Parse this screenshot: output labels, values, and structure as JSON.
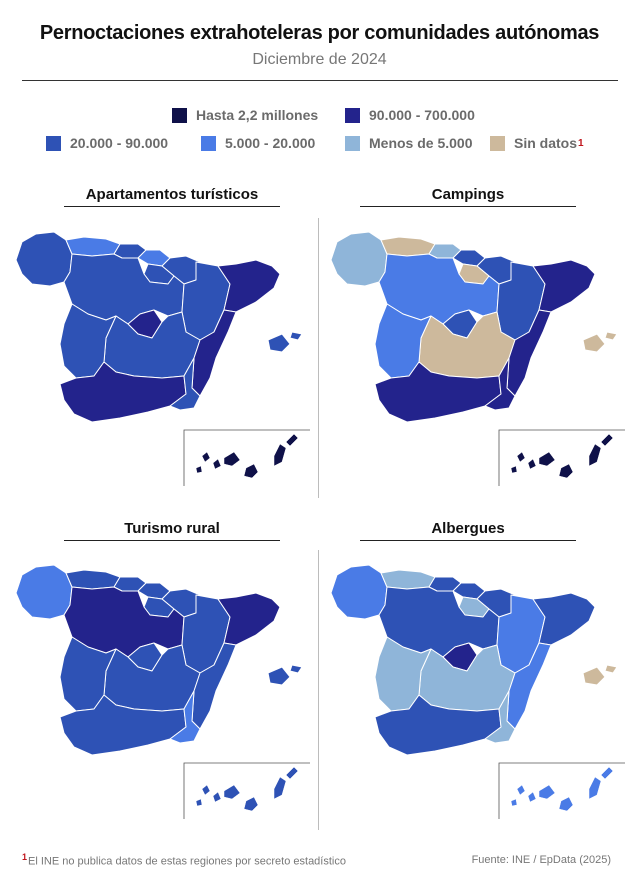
{
  "header": {
    "title": "Pernoctaciones extrahoteleras por comunidades autónomas",
    "subtitle": "Diciembre de 2024"
  },
  "legend": [
    {
      "key": "c1",
      "label": "Hasta 2,2 millones",
      "color": "#0f1149"
    },
    {
      "key": "c2",
      "label": "90.000 - 700.000",
      "color": "#23238c"
    },
    {
      "key": "c3",
      "label": "20.000 - 90.000",
      "color": "#2e52b5"
    },
    {
      "key": "c4",
      "label": "5.000 - 20.000",
      "color": "#4a7be6"
    },
    {
      "key": "c5",
      "label": "Menos de 5.000",
      "color": "#8fb5d9"
    },
    {
      "key": "nd",
      "label": "Sin datos",
      "label_sup": "1",
      "color": "#cdb99c"
    }
  ],
  "maps": [
    {
      "title": "Apartamentos turísticos",
      "regions": {
        "galicia": "c3",
        "asturias": "c4",
        "cantabria": "c3",
        "paisvasco": "c4",
        "navarra": "c3",
        "larioja": "c3",
        "aragon": "c3",
        "cataluna": "c2",
        "castillaleon": "c3",
        "madrid": "c2",
        "castillalamancha": "c3",
        "valencia": "c2",
        "extremadura": "c3",
        "andalucia": "c2",
        "murcia": "c3",
        "baleares": "c3",
        "canarias": "c1"
      }
    },
    {
      "title": "Campings",
      "regions": {
        "galicia": "c5",
        "asturias": "nd",
        "cantabria": "c5",
        "paisvasco": "c3",
        "navarra": "c3",
        "larioja": "nd",
        "aragon": "c3",
        "cataluna": "c2",
        "castillaleon": "c4",
        "madrid": "c3",
        "castillalamancha": "nd",
        "valencia": "c2",
        "extremadura": "c4",
        "andalucia": "c2",
        "murcia": "c2",
        "baleares": "nd",
        "canarias": "c1"
      }
    },
    {
      "title": "Turismo rural",
      "regions": {
        "galicia": "c4",
        "asturias": "c3",
        "cantabria": "c3",
        "paisvasco": "c3",
        "navarra": "c3",
        "larioja": "c3",
        "aragon": "c3",
        "cataluna": "c2",
        "castillaleon": "c2",
        "madrid": "c3",
        "castillalamancha": "c3",
        "valencia": "c3",
        "extremadura": "c3",
        "andalucia": "c3",
        "murcia": "c4",
        "baleares": "c3",
        "canarias": "c3"
      }
    },
    {
      "title": "Albergues",
      "regions": {
        "galicia": "c4",
        "asturias": "c5",
        "cantabria": "c3",
        "paisvasco": "c3",
        "navarra": "c3",
        "larioja": "c5",
        "aragon": "c4",
        "cataluna": "c3",
        "castillaleon": "c3",
        "madrid": "c2",
        "castillalamancha": "c5",
        "valencia": "c4",
        "extremadura": "c5",
        "andalucia": "c3",
        "murcia": "c5",
        "baleares": "nd",
        "canarias": "c4"
      }
    }
  ],
  "footer": {
    "footnote_mark": "1",
    "footnote": "El INE no publica datos de estas regiones por secreto estadístico",
    "source": "Fuente: INE / EpData (2025)"
  }
}
